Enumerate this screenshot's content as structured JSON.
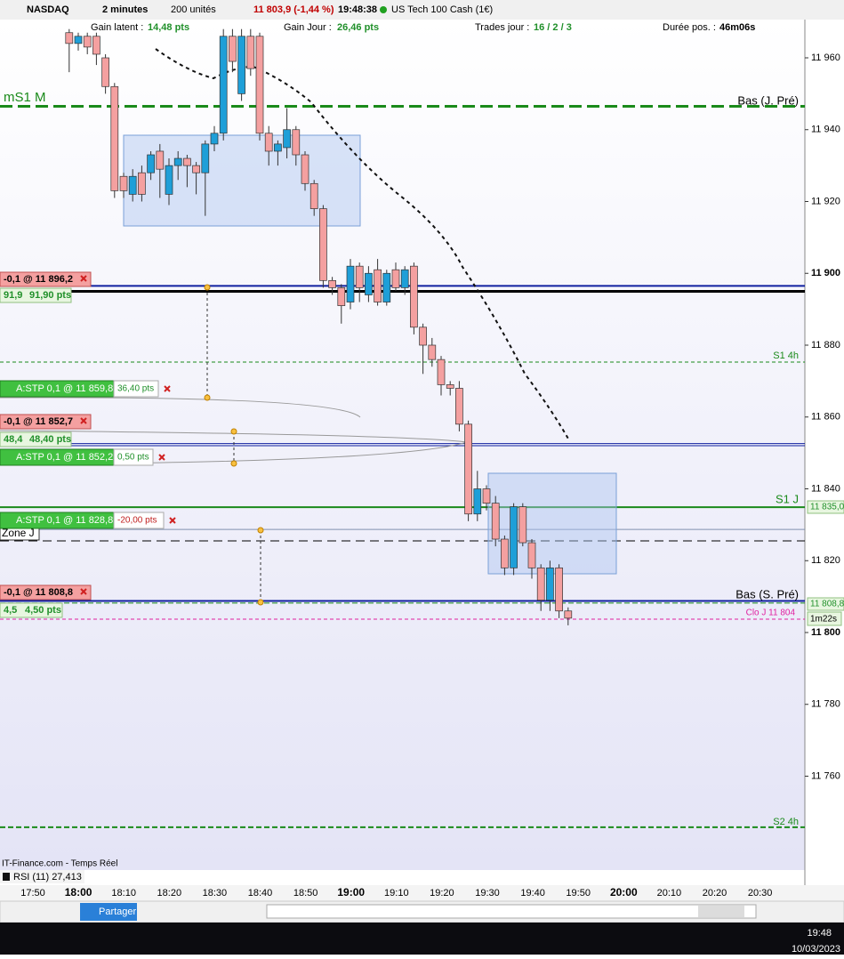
{
  "toolbar": {
    "instrument": "NASDAQ",
    "period": "2 minutes",
    "units": "200 unités",
    "quote": "11 803,9 (-1,44 %)",
    "time": "19:48:38",
    "name": "US Tech 100 Cash (1€)"
  },
  "info": {
    "gain_latent_label": "Gain latent :",
    "gain_latent": "14,48 pts",
    "gain_jour_label": "Gain Jour :",
    "gain_jour": "26,46 pts",
    "trades_label": "Trades jour :",
    "trades": "16 / 2 / 3",
    "duree_label": "Durée pos. :",
    "duree": "46m06s"
  },
  "orders": [
    {
      "label": "-0,1 @ 11 896,2",
      "gain": "91,9",
      "pts": "91,90 pts"
    },
    {
      "label": "-0,1 @ 11 852,7",
      "gain": "48,4",
      "pts": "48,40 pts"
    },
    {
      "label": "-0,1 @ 11 808,8",
      "gain": "4,5",
      "pts": "4,50 pts"
    }
  ],
  "stops": [
    {
      "label": "A:STP 0,1 @ 11 859,8",
      "pts": "36,40 pts"
    },
    {
      "label": "A:STP 0,1 @ 11 852,2",
      "pts": "0,50 pts"
    },
    {
      "label": "A:STP 0,1 @ 11 828,8",
      "pts": "-20,00 pts"
    }
  ],
  "level_labels": {
    "ms1m": "mS1 M",
    "bas_j": "Bas (J. Pré)",
    "s1_4h": "S1 4h",
    "s1_j": "S1 J",
    "zone_j": "Zone J",
    "bas_s": "Bas (S. Pré)",
    "clo_j": "Clo J 11 804",
    "s2_4h": "S2 4h"
  },
  "levels": [
    {
      "price": 11946.5,
      "color": "#1a8a1a",
      "width": 3,
      "dash": "14 6"
    },
    {
      "price": 11896.5,
      "color": "#1020a0",
      "width": 2,
      "dash": ""
    },
    {
      "price": 11895,
      "color": "#000000",
      "width": 3,
      "dash": ""
    },
    {
      "price": 11875.3,
      "color": "#1a8a1a",
      "width": 1,
      "dash": "4 3"
    },
    {
      "price": 11852.6,
      "color": "#1020a0",
      "width": 1,
      "dash": ""
    },
    {
      "price": 11852,
      "color": "#1020a0",
      "width": 1,
      "dash": ""
    },
    {
      "price": 11834.9,
      "color": "#1a8a1a",
      "width": 2,
      "dash": ""
    },
    {
      "price": 11828.7,
      "color": "#8090b0",
      "width": 1,
      "dash": ""
    },
    {
      "price": 11825.5,
      "color": "#000000",
      "width": 1,
      "dash": "10 6"
    },
    {
      "price": 11808.8,
      "color": "#1020a0",
      "width": 2,
      "dash": ""
    },
    {
      "price": 11808.2,
      "color": "#1a8a1a",
      "width": 1,
      "dash": "6 3"
    },
    {
      "price": 11803.7,
      "color": "#e020a0",
      "width": 1,
      "dash": "4 3"
    },
    {
      "price": 11745.8,
      "color": "#1a8a1a",
      "width": 2,
      "dash": "6 3"
    }
  ],
  "price_axis": {
    "ticks": [
      {
        "value": 11960,
        "label": "11 960"
      },
      {
        "value": 11940,
        "label": "11 940"
      },
      {
        "value": 11920,
        "label": "11 920"
      },
      {
        "value": 11900,
        "label": "11 900"
      },
      {
        "value": 11880,
        "label": "11 880"
      },
      {
        "value": 11860,
        "label": "11 860"
      },
      {
        "value": 11840,
        "label": "11 840"
      },
      {
        "value": 11820,
        "label": "11 820"
      },
      {
        "value": 11800,
        "label": "11 800"
      },
      {
        "value": 11780,
        "label": "11 780"
      },
      {
        "value": 11760,
        "label": "11 760"
      }
    ],
    "tag1": "11 835,0",
    "tag2": "11 808,8",
    "tag3": "1m22s"
  },
  "candles": [
    [
      11967,
      11968,
      11956,
      11964
    ],
    [
      11964,
      11967,
      11962,
      11966
    ],
    [
      11966,
      11967,
      11961,
      11963
    ],
    [
      11966,
      11967,
      11958,
      11961
    ],
    [
      11960,
      11961,
      11950,
      11952
    ],
    [
      11952,
      11953,
      11921,
      11923
    ],
    [
      11927,
      11928,
      11921,
      11923
    ],
    [
      11922,
      11929,
      11920,
      11927
    ],
    [
      11928,
      11930,
      11920,
      11922
    ],
    [
      11928,
      11934,
      11926,
      11933
    ],
    [
      11934,
      11936,
      11921,
      11929
    ],
    [
      11922,
      11932,
      11919,
      11930
    ],
    [
      11930,
      11934,
      11926,
      11932
    ],
    [
      11932,
      11933,
      11924,
      11930
    ],
    [
      11930,
      11931,
      11922,
      11928
    ],
    [
      11928,
      11937,
      11916,
      11936
    ],
    [
      11936,
      11941,
      11934,
      11939
    ],
    [
      11939,
      11968,
      11937,
      11966
    ],
    [
      11966,
      11968,
      11956,
      11959
    ],
    [
      11950,
      11968,
      11948,
      11966
    ],
    [
      11966,
      11968,
      11955,
      11957
    ],
    [
      11966,
      11967,
      11937,
      11939
    ],
    [
      11939,
      11941,
      11930,
      11934
    ],
    [
      11934,
      11937,
      11930,
      11936
    ],
    [
      11935,
      11946,
      11932,
      11940
    ],
    [
      11940,
      11941,
      11930,
      11933
    ],
    [
      11933,
      11934,
      11923,
      11925
    ],
    [
      11925,
      11926,
      11916,
      11918
    ],
    [
      11918,
      11919,
      11896,
      11898
    ],
    [
      11898,
      11899,
      11894,
      11896
    ],
    [
      11896,
      11897,
      11886,
      11891
    ],
    [
      11892,
      11904,
      11890,
      11902
    ],
    [
      11902,
      11903,
      11892,
      11896
    ],
    [
      11894,
      11902,
      11892,
      11900
    ],
    [
      11901,
      11904,
      11891,
      11892
    ],
    [
      11892,
      11901,
      11891,
      11900
    ],
    [
      11901,
      11903,
      11895,
      11896
    ],
    [
      11896,
      11902,
      11894,
      11901
    ],
    [
      11902,
      11903,
      11883,
      11885
    ],
    [
      11885,
      11886,
      11872,
      11880
    ],
    [
      11880,
      11882,
      11874,
      11876
    ],
    [
      11876,
      11877,
      11866,
      11869
    ],
    [
      11869,
      11870,
      11866,
      11868
    ],
    [
      11868,
      11870,
      11856,
      11858
    ],
    [
      11858,
      11859,
      11831,
      11833
    ],
    [
      11833,
      11845,
      11831,
      11840
    ],
    [
      11840,
      11841,
      11834,
      11836
    ],
    [
      11836,
      11838,
      11824,
      11826
    ],
    [
      11826,
      11827,
      11816,
      11818
    ],
    [
      11818,
      11836,
      11816,
      11835
    ],
    [
      11835,
      11836,
      11824,
      11825
    ],
    [
      11825,
      11826,
      11815,
      11818
    ],
    [
      11818,
      11819,
      11806,
      11809
    ],
    [
      11809,
      11820,
      11806,
      11818
    ],
    [
      11818,
      11819,
      11804,
      11806
    ],
    [
      11806,
      11807,
      11802,
      11804
    ]
  ],
  "time_axis": [
    "17:50",
    "18:00",
    "18:10",
    "18:20",
    "18:30",
    "18:40",
    "18:50",
    "19:00",
    "19:10",
    "19:20",
    "19:30",
    "19:40",
    "19:50",
    "20:00",
    "20:10",
    "20:20",
    "20:30"
  ],
  "footer": {
    "source": "IT-Finance.com - Temps Réel",
    "rsi": "RSI (11) 27,413",
    "share": "Partager"
  },
  "taskbar": {
    "time": "19:48",
    "date": "10/03/2023"
  }
}
